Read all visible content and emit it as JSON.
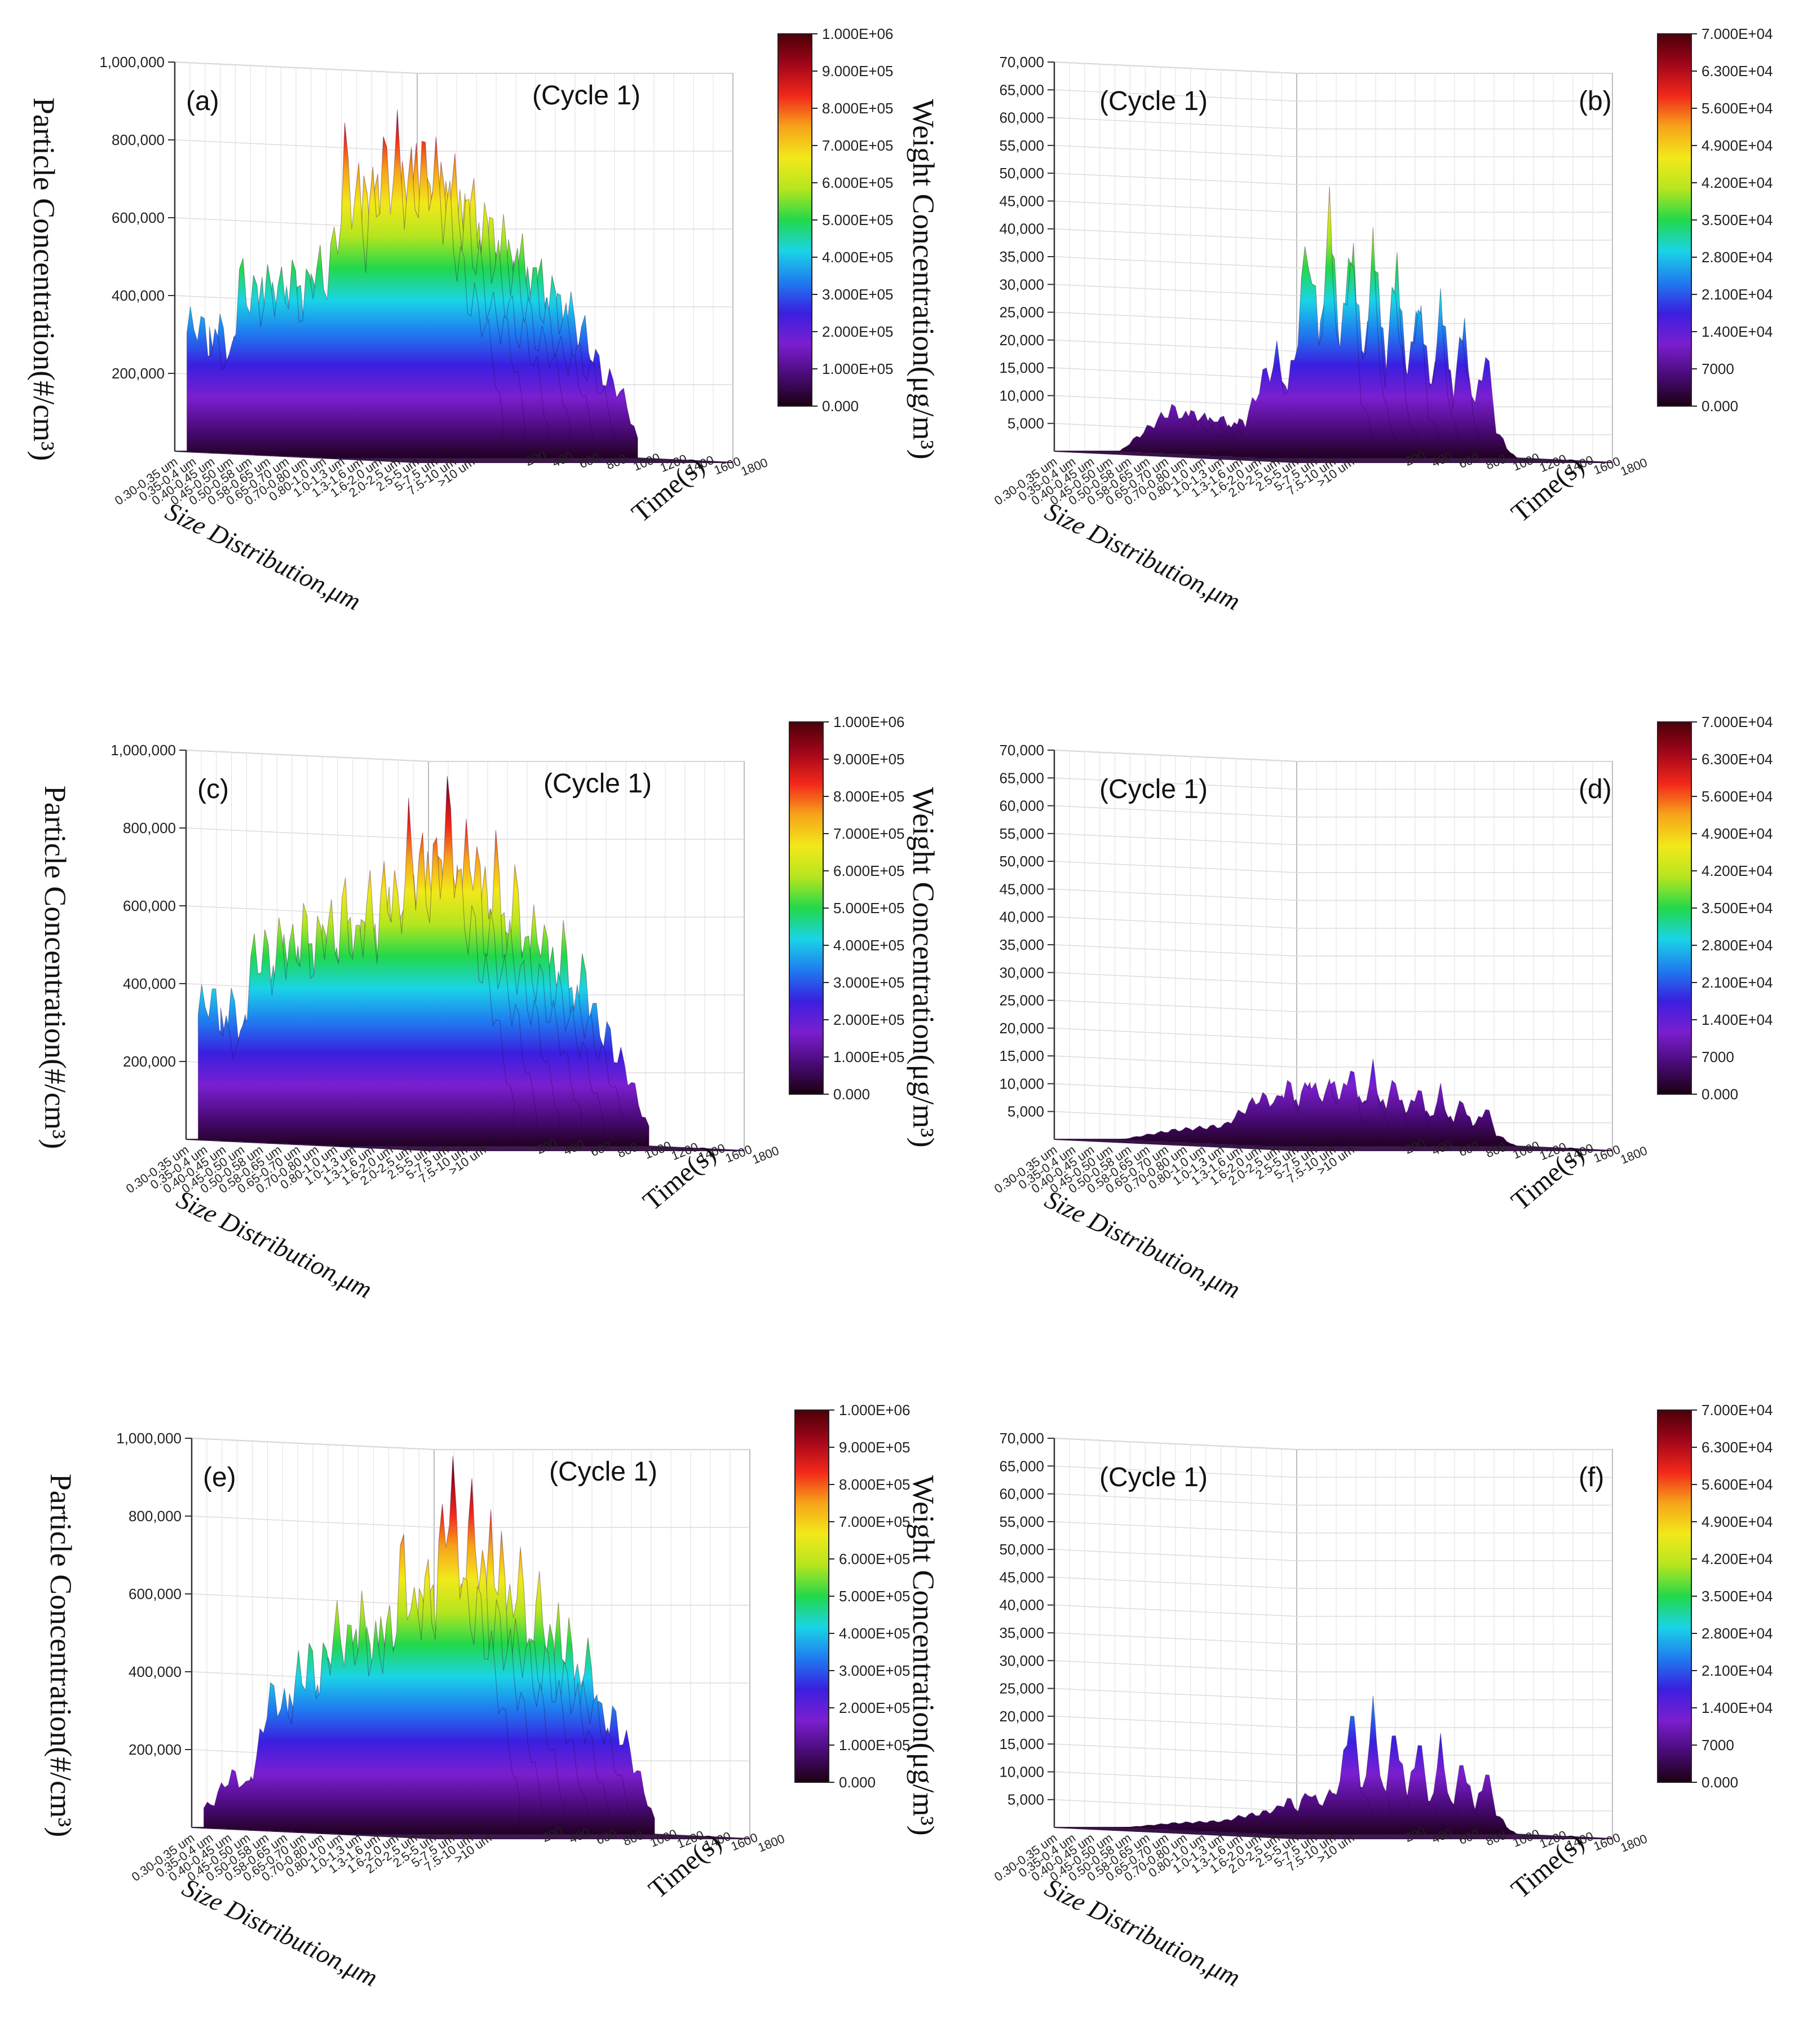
{
  "figure": {
    "shared": {
      "size_categories": [
        "0.30-0.35 um",
        "0.35-0.4 um",
        "0.40-0.45 um",
        "0.45-0.50 um",
        "0.50-0.58 um",
        "0.58-0.65 um",
        "0.65-0.70 um",
        "0.70-0.80 um",
        "0.80-1.0 um",
        "1.0-1.3 um",
        "1.3-1.6 um",
        "1.6-2.0 um",
        "2.0-2.5 um",
        "2.5-5 um",
        "5-7.5 um",
        "7.5-10 um",
        ">10 um"
      ],
      "time_ticks": [
        "200",
        "400",
        "600",
        "800",
        "1000",
        "1200",
        "1400",
        "1600",
        "1800"
      ],
      "size_axis_label": "Size Distribution,μm",
      "time_axis_label": "Time(s)",
      "colormap": [
        "#1a0010",
        "#4a0a78",
        "#7a1fcf",
        "#3a1fe0",
        "#1f7cf0",
        "#1ad4e6",
        "#22d84a",
        "#b6e61e",
        "#f2e81a",
        "#f7a41a",
        "#f2281a",
        "#a3061a",
        "#4a0008"
      ]
    }
  },
  "chart_data": [
    {
      "panel": "a",
      "label": "(a)",
      "cycle": "(Cycle 1)",
      "type": "surface3d",
      "zlabel": "Particle Concentration(#/cm³)",
      "zticks": [
        "200,000",
        "400,000",
        "600,000",
        "800,000",
        "1,000,000"
      ],
      "zlim": [
        0,
        1000000
      ],
      "colorbar": [
        "0.000",
        "1.000E+05",
        "2.000E+05",
        "3.000E+05",
        "4.000E+05",
        "5.000E+05",
        "6.000E+05",
        "7.000E+05",
        "8.000E+05",
        "9.000E+05",
        "1.000E+06"
      ],
      "front_profile_time": [
        0,
        60,
        120,
        180,
        240,
        300,
        360,
        420,
        480,
        540,
        600,
        660,
        720,
        780,
        840,
        900,
        960,
        1020,
        1080,
        1140,
        1200,
        1260,
        1320,
        1380,
        1440,
        1500,
        1560,
        1620,
        1680,
        1740,
        1800
      ],
      "front_profile_values": [
        360000,
        400000,
        330000,
        320000,
        250000,
        520000,
        480000,
        450000,
        500000,
        480000,
        520000,
        430000,
        560000,
        520000,
        600000,
        860000,
        790000,
        650000,
        800000,
        850000,
        880000,
        780000,
        820000,
        860000,
        790000,
        700000,
        560000,
        450000,
        420000,
        300000,
        100000
      ],
      "peak_values": [
        360000,
        520000,
        600000,
        880000,
        860000
      ]
    },
    {
      "panel": "b",
      "label": "(b)",
      "cycle": "(Cycle 1)",
      "type": "surface3d",
      "zlabel": "Weight Concentration(μg/m³)",
      "zticks": [
        "5,000",
        "10,000",
        "15,000",
        "20,000",
        "25,000",
        "30,000",
        "35,000",
        "40,000",
        "45,000",
        "50,000",
        "55,000",
        "60,000",
        "65,000",
        "70,000"
      ],
      "zlim": [
        0,
        70000
      ],
      "colorbar": [
        "0.000",
        "7000",
        "1.400E+04",
        "2.100E+04",
        "2.800E+04",
        "3.500E+04",
        "4.200E+04",
        "4.900E+04",
        "5.600E+04",
        "6.300E+04",
        "7.000E+04"
      ],
      "front_profile_time": [
        0,
        300,
        600,
        900,
        1000,
        1100,
        1200,
        1260,
        1320,
        1380,
        1440,
        1500,
        1560,
        1620,
        1680,
        1740,
        1800
      ],
      "front_profile_values": [
        0,
        0,
        9000,
        3000,
        4000,
        14000,
        20000,
        12000,
        26000,
        46000,
        22000,
        48000,
        20000,
        44000,
        12000,
        4000,
        0
      ],
      "peak_values": [
        9000,
        20000,
        46000,
        48000,
        44000
      ]
    },
    {
      "panel": "c",
      "label": "(c)",
      "cycle": "(Cycle 1)",
      "type": "surface3d",
      "zlabel": "Particle Concentration(#/cm³)",
      "zticks": [
        "200,000",
        "400,000",
        "600,000",
        "800,000",
        "1,000,000"
      ],
      "zlim": [
        0,
        1000000
      ],
      "colorbar": [
        "0.000",
        "1.000E+05",
        "2.000E+05",
        "3.000E+05",
        "4.000E+05",
        "5.000E+05",
        "6.000E+05",
        "7.000E+05",
        "8.000E+05",
        "9.000E+05",
        "1.000E+06"
      ],
      "front_profile_time": [
        0,
        60,
        120,
        180,
        240,
        300,
        360,
        420,
        480,
        540,
        600,
        660,
        720,
        780,
        840,
        900,
        960,
        1020,
        1080,
        1140,
        1200,
        1260,
        1320,
        1380,
        1440,
        1500,
        1560,
        1620,
        1680,
        1740,
        1800
      ],
      "front_profile_values": [
        380000,
        440000,
        380000,
        300000,
        280000,
        520000,
        580000,
        520000,
        600000,
        560000,
        640000,
        540000,
        660000,
        600000,
        700000,
        560000,
        720000,
        640000,
        780000,
        680000,
        880000,
        820000,
        760000,
        860000,
        980000,
        700000,
        640000,
        520000,
        420000,
        250000,
        100000
      ],
      "peak_values": [
        440000,
        660000,
        780000,
        880000,
        980000
      ]
    },
    {
      "panel": "d",
      "label": "(d)",
      "cycle": "(Cycle 1)",
      "type": "surface3d",
      "zlabel": "Weight Concentration(μg/m³)",
      "zticks": [
        "5,000",
        "10,000",
        "15,000",
        "20,000",
        "25,000",
        "30,000",
        "35,000",
        "40,000",
        "45,000",
        "50,000",
        "55,000",
        "60,000",
        "65,000",
        "70,000"
      ],
      "zlim": [
        0,
        70000
      ],
      "colorbar": [
        "0.000",
        "7000",
        "1.400E+04",
        "2.100E+04",
        "2.800E+04",
        "3.500E+04",
        "4.200E+04",
        "4.900E+04",
        "5.600E+04",
        "6.300E+04",
        "7.000E+04"
      ],
      "front_profile_time": [
        0,
        300,
        600,
        900,
        1000,
        1100,
        1200,
        1260,
        1320,
        1380,
        1440,
        1500,
        1560,
        1620,
        1680,
        1740,
        1800
      ],
      "front_profile_values": [
        0,
        0,
        2000,
        3000,
        6000,
        9000,
        8000,
        12000,
        7000,
        13000,
        9000,
        11000,
        8000,
        16000,
        5000,
        2000,
        0
      ],
      "peak_values": [
        6000,
        12000,
        13000,
        16000
      ]
    },
    {
      "panel": "e",
      "label": "(e)",
      "cycle": "(Cycle 1)",
      "type": "surface3d",
      "zlabel": "Particle Concentration(#/cm³)",
      "zticks": [
        "200,000",
        "400,000",
        "600,000",
        "800,000",
        "1,000,000"
      ],
      "zlim": [
        0,
        1000000
      ],
      "colorbar": [
        "0.000",
        "1.000E+05",
        "2.000E+05",
        "3.000E+05",
        "4.000E+05",
        "5.000E+05",
        "6.000E+05",
        "7.000E+05",
        "8.000E+05",
        "9.000E+05",
        "1.000E+06"
      ],
      "front_profile_time": [
        0,
        60,
        120,
        180,
        240,
        300,
        360,
        420,
        480,
        540,
        600,
        660,
        720,
        780,
        840,
        900,
        960,
        1020,
        1080,
        1140,
        1200,
        1260,
        1320,
        1380,
        1440,
        1500,
        1560,
        1620,
        1680,
        1740,
        1800
      ],
      "front_profile_values": [
        60000,
        80000,
        140000,
        160000,
        120000,
        200000,
        380000,
        400000,
        340000,
        460000,
        500000,
        440000,
        560000,
        600000,
        540000,
        620000,
        520000,
        560000,
        600000,
        820000,
        620000,
        720000,
        660000,
        1000000,
        940000,
        640000,
        660000,
        560000,
        420000,
        250000,
        80000
      ],
      "peak_values": [
        160000,
        460000,
        620000,
        820000,
        1000000
      ]
    },
    {
      "panel": "f",
      "label": "(f)",
      "cycle": "(Cycle 1)",
      "type": "surface3d",
      "zlabel": "Weight Concentration(μg/m³)",
      "zticks": [
        "5,000",
        "10,000",
        "15,000",
        "20,000",
        "25,000",
        "30,000",
        "35,000",
        "40,000",
        "45,000",
        "50,000",
        "55,000",
        "60,000",
        "65,000",
        "70,000"
      ],
      "zlim": [
        0,
        70000
      ],
      "colorbar": [
        "0.000",
        "7000",
        "1.400E+04",
        "2.100E+04",
        "2.800E+04",
        "3.500E+04",
        "4.200E+04",
        "4.900E+04",
        "5.600E+04",
        "6.300E+04",
        "7.000E+04"
      ],
      "front_profile_time": [
        0,
        300,
        600,
        900,
        1000,
        1100,
        1200,
        1260,
        1320,
        1380,
        1440,
        1500,
        1560,
        1620,
        1680,
        1740,
        1800
      ],
      "front_profile_values": [
        0,
        0,
        1000,
        1500,
        2500,
        3000,
        4000,
        6000,
        4000,
        8000,
        5000,
        7000,
        9000,
        26000,
        9000,
        3000,
        0
      ],
      "peak_values": [
        6000,
        8000,
        26000
      ]
    }
  ]
}
